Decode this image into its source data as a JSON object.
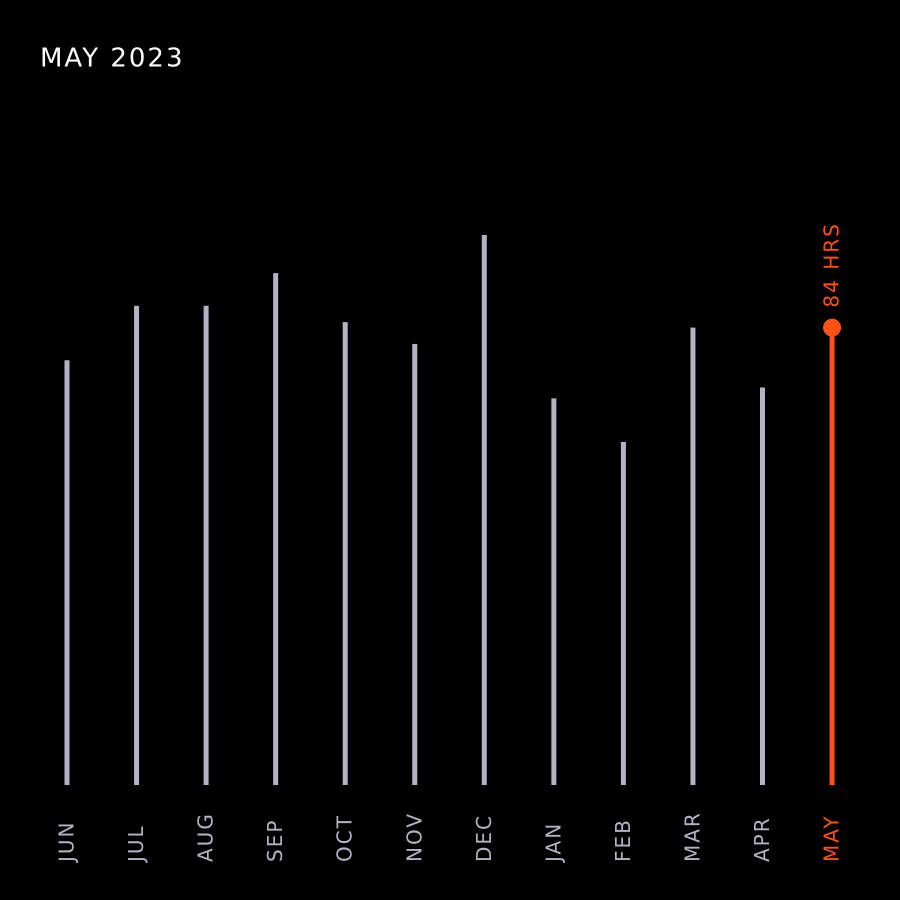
{
  "chart_data": {
    "type": "bar",
    "title": "MAY 2023",
    "categories": [
      "JUN",
      "JUL",
      "AUG",
      "SEP",
      "OCT",
      "NOV",
      "DEC",
      "JAN",
      "FEB",
      "MAR",
      "APR",
      "MAY"
    ],
    "values": [
      78,
      88,
      88,
      94,
      85,
      81,
      101,
      71,
      63,
      84,
      73,
      84
    ],
    "value_labels": [
      null,
      null,
      null,
      null,
      null,
      null,
      null,
      null,
      null,
      null,
      null,
      "84 HRS"
    ],
    "colors": [
      "#b3b3c6",
      "#b3b3c6",
      "#b3b3c6",
      "#b3b3c6",
      "#b3b3c6",
      "#b3b3c6",
      "#b3b3c6",
      "#b3b3c6",
      "#b3b3c6",
      "#b3b3c6",
      "#b3b3c6",
      "#ff5115"
    ],
    "ylim": [
      0,
      101
    ]
  }
}
